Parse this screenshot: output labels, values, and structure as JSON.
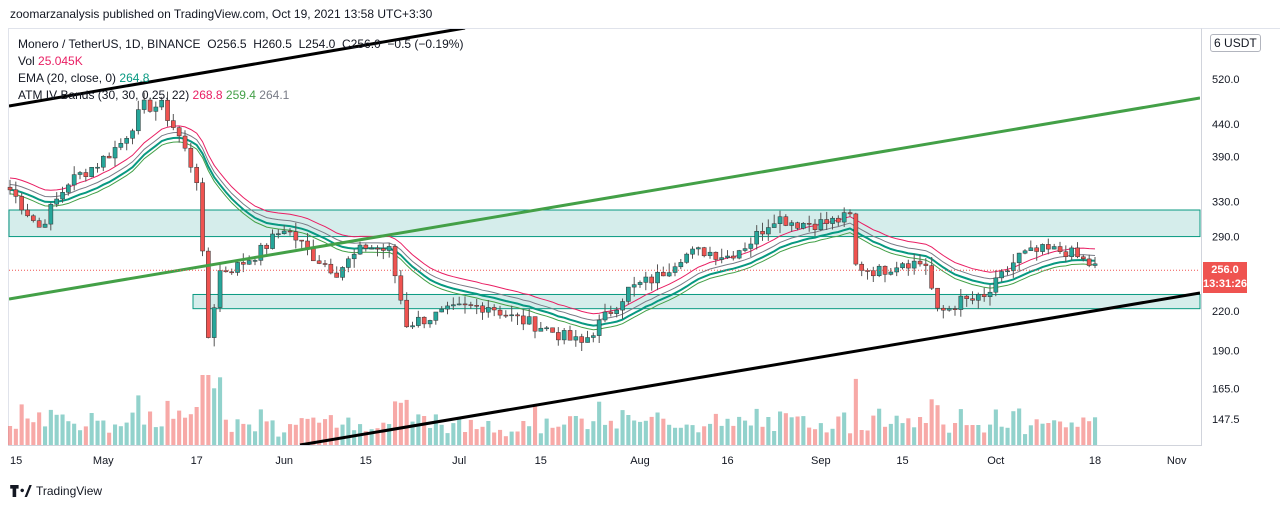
{
  "header": {
    "publisher_line": "zoomarzanalysis published on TradingView.com, Oct 19, 2021 13:58 UTC+3:30"
  },
  "legend": {
    "symbol_line": "Monero / TetherUS, 1D, BINANCE",
    "ohlc": {
      "O": "256.5",
      "H": "260.5",
      "L": "254.0",
      "C": "256.0",
      "change": "−0.5 (−0.19%)"
    },
    "vol_label": "Vol",
    "vol_value": "25.045K",
    "ema_label": "EMA (20, close, 0)",
    "ema_value": "264.8",
    "bands_label": "ATM IV Bands (30, 30, 0.25, 22)",
    "bands_values": [
      "268.8",
      "259.4",
      "264.1"
    ]
  },
  "currency_label": "USDT",
  "currency_prefix": "6",
  "last_price": {
    "price": "256.0",
    "countdown": "13:31:26"
  },
  "brand": {
    "name": "TradingView"
  },
  "colors": {
    "up": "#26a69a",
    "down": "#ef5350",
    "ema": "#089981",
    "band_upper": "#e91e63",
    "band_lower": "#43a047",
    "band_mid": "#787b86",
    "zone_fill": "#b2dfdb",
    "zone_line": "#089981",
    "green_line": "#43a047",
    "black_line": "#000000"
  },
  "chart_data": {
    "type": "candlestick",
    "scale": "log",
    "y_ticks": [
      520.0,
      440.0,
      390.0,
      330.0,
      290.0,
      256.0,
      220.0,
      190.0,
      165.0,
      147.5
    ],
    "y_tick_labels": [
      "520.0",
      "440.0",
      "390.0",
      "330.0",
      "290.0",
      "220.0",
      "190.0",
      "165.0",
      "147.5"
    ],
    "x_tick_labels": [
      {
        "label": "15",
        "date": "2021-04-15"
      },
      {
        "label": "May",
        "date": "2021-05-01"
      },
      {
        "label": "17",
        "date": "2021-05-17"
      },
      {
        "label": "Jun",
        "date": "2021-06-01"
      },
      {
        "label": "15",
        "date": "2021-06-15"
      },
      {
        "label": "Jul",
        "date": "2021-07-01"
      },
      {
        "label": "15",
        "date": "2021-07-15"
      },
      {
        "label": "Aug",
        "date": "2021-08-01"
      },
      {
        "label": "16",
        "date": "2021-08-16"
      },
      {
        "label": "Sep",
        "date": "2021-09-01"
      },
      {
        "label": "15",
        "date": "2021-09-15"
      },
      {
        "label": "Oct",
        "date": "2021-10-01"
      },
      {
        "label": "18",
        "date": "2021-10-18"
      },
      {
        "label": "Nov",
        "date": "2021-11-01"
      }
    ],
    "closes": [
      {
        "date": "2021-04-15",
        "close": 345
      },
      {
        "date": "2021-04-20",
        "close": 300
      },
      {
        "date": "2021-04-25",
        "close": 355
      },
      {
        "date": "2021-04-30",
        "close": 380
      },
      {
        "date": "2021-05-04",
        "close": 410
      },
      {
        "date": "2021-05-08",
        "close": 470
      },
      {
        "date": "2021-05-11",
        "close": 470
      },
      {
        "date": "2021-05-14",
        "close": 420
      },
      {
        "date": "2021-05-17",
        "close": 360
      },
      {
        "date": "2021-05-19",
        "close": 200
      },
      {
        "date": "2021-05-21",
        "close": 255
      },
      {
        "date": "2021-05-24",
        "close": 260
      },
      {
        "date": "2021-05-28",
        "close": 275
      },
      {
        "date": "2021-06-01",
        "close": 300
      },
      {
        "date": "2021-06-06",
        "close": 270
      },
      {
        "date": "2021-06-10",
        "close": 255
      },
      {
        "date": "2021-06-15",
        "close": 280
      },
      {
        "date": "2021-06-19",
        "close": 275
      },
      {
        "date": "2021-06-22",
        "close": 210
      },
      {
        "date": "2021-06-26",
        "close": 215
      },
      {
        "date": "2021-07-01",
        "close": 222
      },
      {
        "date": "2021-07-06",
        "close": 225
      },
      {
        "date": "2021-07-10",
        "close": 215
      },
      {
        "date": "2021-07-15",
        "close": 208
      },
      {
        "date": "2021-07-20",
        "close": 198
      },
      {
        "date": "2021-07-22",
        "close": 195
      },
      {
        "date": "2021-07-26",
        "close": 215
      },
      {
        "date": "2021-07-30",
        "close": 238
      },
      {
        "date": "2021-08-04",
        "close": 250
      },
      {
        "date": "2021-08-08",
        "close": 270
      },
      {
        "date": "2021-08-12",
        "close": 275
      },
      {
        "date": "2021-08-16",
        "close": 270
      },
      {
        "date": "2021-08-20",
        "close": 285
      },
      {
        "date": "2021-08-24",
        "close": 312
      },
      {
        "date": "2021-08-28",
        "close": 305
      },
      {
        "date": "2021-09-02",
        "close": 305
      },
      {
        "date": "2021-09-06",
        "close": 312
      },
      {
        "date": "2021-09-07",
        "close": 260
      },
      {
        "date": "2021-09-11",
        "close": 255
      },
      {
        "date": "2021-09-15",
        "close": 265
      },
      {
        "date": "2021-09-19",
        "close": 262
      },
      {
        "date": "2021-09-21",
        "close": 218
      },
      {
        "date": "2021-09-25",
        "close": 228
      },
      {
        "date": "2021-09-29",
        "close": 230
      },
      {
        "date": "2021-10-02",
        "close": 250
      },
      {
        "date": "2021-10-05",
        "close": 270
      },
      {
        "date": "2021-10-09",
        "close": 275
      },
      {
        "date": "2021-10-13",
        "close": 275
      },
      {
        "date": "2021-10-16",
        "close": 265
      },
      {
        "date": "2021-10-19",
        "close": 256
      }
    ]
  }
}
